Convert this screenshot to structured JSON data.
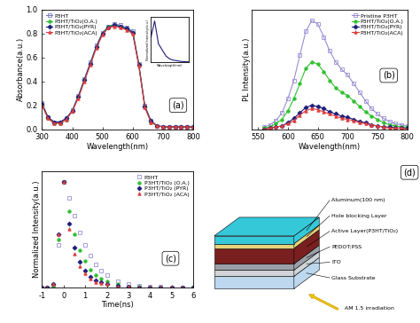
{
  "chart_data": [
    {
      "type": "line",
      "annotation": "(a)",
      "x_label": "Wavelength(nm)",
      "y_label": "Absorbance(a.u.)",
      "x": [
        300,
        320,
        340,
        360,
        380,
        400,
        420,
        440,
        460,
        480,
        500,
        520,
        540,
        560,
        580,
        600,
        620,
        640,
        660,
        680,
        700,
        720,
        740,
        760,
        780,
        800
      ],
      "xlim": [
        300,
        800
      ],
      "xticks": [
        300,
        400,
        500,
        600,
        700,
        800
      ],
      "ylim": [
        0.0,
        1.0
      ],
      "yticks": [
        0.0,
        0.2,
        0.4,
        0.6,
        0.8,
        1.0
      ],
      "legend": "upper left",
      "series": [
        {
          "name": "P3HT",
          "color": "#7b7bc4",
          "marker": "open_square",
          "line_style": "solid",
          "values": [
            0.22,
            0.1,
            0.06,
            0.06,
            0.09,
            0.16,
            0.28,
            0.42,
            0.56,
            0.7,
            0.81,
            0.86,
            0.88,
            0.87,
            0.85,
            0.82,
            0.55,
            0.2,
            0.07,
            0.03,
            0.02,
            0.02,
            0.02,
            0.02,
            0.02,
            0.02
          ]
        },
        {
          "name": "P3HT/TiO₂(O.A.)",
          "color": "#2fbf2f",
          "marker": "circle",
          "line_style": "solid",
          "values": [
            0.2,
            0.09,
            0.05,
            0.05,
            0.08,
            0.15,
            0.27,
            0.41,
            0.55,
            0.69,
            0.8,
            0.86,
            0.87,
            0.86,
            0.84,
            0.81,
            0.54,
            0.19,
            0.06,
            0.03,
            0.02,
            0.02,
            0.02,
            0.02,
            0.02,
            0.02
          ]
        },
        {
          "name": "P3HT/TiO₂(PYR)",
          "color": "#1c1c7a",
          "marker": "diamond",
          "line_style": "solid",
          "values": [
            0.21,
            0.1,
            0.06,
            0.06,
            0.09,
            0.15,
            0.27,
            0.41,
            0.55,
            0.69,
            0.8,
            0.85,
            0.87,
            0.86,
            0.84,
            0.81,
            0.54,
            0.19,
            0.07,
            0.03,
            0.02,
            0.02,
            0.02,
            0.02,
            0.02,
            0.02
          ]
        },
        {
          "name": "P3HT/TiO₂(ACA)",
          "color": "#e03c3c",
          "marker": "triangle",
          "line_style": "solid",
          "values": [
            0.2,
            0.09,
            0.05,
            0.05,
            0.08,
            0.15,
            0.26,
            0.4,
            0.54,
            0.68,
            0.79,
            0.85,
            0.86,
            0.85,
            0.83,
            0.8,
            0.53,
            0.18,
            0.06,
            0.03,
            0.02,
            0.02,
            0.02,
            0.02,
            0.02,
            0.02
          ]
        }
      ]
    },
    {
      "type": "line",
      "x_label": "Wavelength(nm)",
      "y_label": "Normalized Intensity(a.u.)",
      "x": [
        300,
        350,
        400,
        450,
        500,
        550,
        600,
        700,
        800
      ],
      "xlim": [
        300,
        800
      ],
      "xticks": [],
      "ylim": [
        0,
        1.1
      ],
      "yticks": [],
      "tick_labels": false,
      "series": [
        {
          "name": "P3HT",
          "color": "#1c1c7a",
          "line_style": "solid",
          "values": [
            0.6,
            1.0,
            0.45,
            0.3,
            0.15,
            0.08,
            0.05,
            0.02,
            0.01
          ]
        }
      ]
    },
    {
      "type": "line",
      "annotation": "(b)",
      "x_label": "Wavelength(nm)",
      "y_label": "PL Intensity(a.u.)",
      "x": [
        560,
        570,
        580,
        590,
        600,
        610,
        620,
        630,
        640,
        650,
        660,
        670,
        680,
        690,
        700,
        710,
        720,
        730,
        740,
        750,
        760,
        770,
        780,
        790,
        800
      ],
      "xlim": [
        540,
        800
      ],
      "xticks": [
        550,
        600,
        650,
        700,
        750,
        800
      ],
      "ylim": [
        0,
        1.1
      ],
      "yticks": [],
      "tick_labels": "x",
      "legend": "upper right",
      "series": [
        {
          "name": "Pristine P3HT",
          "color": "#9a8fd6",
          "marker": "open_square",
          "line_style": "solid",
          "values": [
            0.02,
            0.04,
            0.08,
            0.15,
            0.28,
            0.45,
            0.68,
            0.9,
            1.0,
            0.97,
            0.85,
            0.72,
            0.62,
            0.55,
            0.5,
            0.42,
            0.34,
            0.26,
            0.19,
            0.14,
            0.1,
            0.07,
            0.05,
            0.04,
            0.03
          ]
        },
        {
          "name": "P3HT/TiO₂(O.A.)",
          "color": "#2fbf2f",
          "marker": "circle",
          "line_style": "solid",
          "values": [
            0.01,
            0.02,
            0.05,
            0.09,
            0.17,
            0.28,
            0.42,
            0.56,
            0.62,
            0.6,
            0.53,
            0.45,
            0.38,
            0.34,
            0.31,
            0.26,
            0.21,
            0.16,
            0.12,
            0.09,
            0.06,
            0.04,
            0.03,
            0.02,
            0.02
          ]
        },
        {
          "name": "P3HT/TiO₂(PYR)",
          "color": "#1c1c7a",
          "marker": "diamond",
          "line_style": "solid",
          "values": [
            0.0,
            0.01,
            0.02,
            0.03,
            0.06,
            0.1,
            0.15,
            0.2,
            0.22,
            0.21,
            0.19,
            0.16,
            0.14,
            0.12,
            0.11,
            0.09,
            0.07,
            0.06,
            0.04,
            0.03,
            0.02,
            0.02,
            0.01,
            0.01,
            0.01
          ]
        },
        {
          "name": "P3HT/TiO₂(ACA)",
          "color": "#e03c3c",
          "marker": "triangle",
          "line_style": "solid",
          "values": [
            0.0,
            0.01,
            0.02,
            0.03,
            0.05,
            0.08,
            0.13,
            0.17,
            0.19,
            0.18,
            0.16,
            0.14,
            0.12,
            0.1,
            0.09,
            0.08,
            0.06,
            0.05,
            0.04,
            0.03,
            0.02,
            0.01,
            0.01,
            0.01,
            0.0
          ]
        }
      ]
    },
    {
      "type": "line",
      "annotation": "(c)",
      "x_label": "Time(ns)",
      "y_label": "Normalized Intensity(a.u.)",
      "x": [
        -1,
        -0.75,
        -0.5,
        -0.25,
        0,
        0.25,
        0.5,
        0.75,
        1,
        1.25,
        1.5,
        1.75,
        2,
        2.5,
        3,
        3.5,
        4,
        4.5,
        5,
        5.5,
        6
      ],
      "xlim": [
        -1,
        6
      ],
      "xticks": [
        -1,
        0,
        1,
        2,
        3,
        4,
        5,
        6
      ],
      "ylim": [
        0,
        1.1
      ],
      "yticks": [],
      "tick_labels": "x",
      "legend": "upper right",
      "series": [
        {
          "name": "P3HT",
          "color": "#9a8fd6",
          "marker": "open_square",
          "line_style": "none",
          "values": [
            0,
            0,
            0.02,
            0.4,
            1.0,
            0.85,
            0.68,
            0.52,
            0.4,
            0.3,
            0.22,
            0.16,
            0.12,
            0.06,
            0.03,
            0.02,
            0.01,
            0.01,
            0,
            0,
            0
          ]
        },
        {
          "name": "P3HT/TiO₂ (O.A.)",
          "color": "#2fbf2f",
          "marker": "circle",
          "line_style": "none",
          "values": [
            0,
            0,
            0.02,
            0.45,
            1.0,
            0.72,
            0.5,
            0.35,
            0.25,
            0.17,
            0.12,
            0.08,
            0.06,
            0.03,
            0.01,
            0.01,
            0,
            0,
            0,
            0,
            0
          ]
        },
        {
          "name": "P3HT/TiO₂ (PYR)",
          "color": "#1c1c7a",
          "marker": "diamond",
          "line_style": "none",
          "values": [
            0,
            0,
            0.03,
            0.5,
            1.0,
            0.6,
            0.38,
            0.24,
            0.16,
            0.1,
            0.07,
            0.05,
            0.03,
            0.02,
            0.01,
            0,
            0,
            0,
            0,
            0,
            0
          ]
        },
        {
          "name": "P3HT/TiO₂ (ACA)",
          "color": "#e03c3c",
          "marker": "triangle",
          "line_style": "none",
          "values": [
            0,
            0,
            0.03,
            0.5,
            1.0,
            0.55,
            0.32,
            0.2,
            0.13,
            0.08,
            0.05,
            0.04,
            0.03,
            0.01,
            0.01,
            0,
            0,
            0,
            0,
            0,
            0
          ]
        }
      ]
    }
  ],
  "diagram": {
    "annotation": "(d)",
    "layers": [
      "Aluminum(100 nm)",
      "Hole blocking Layer",
      "Active Layer(P3HT/TiO₂)",
      "PEDOT:PSS",
      "ITO",
      "Glass Substrate"
    ],
    "light": "AM 1.5 irradiation"
  }
}
